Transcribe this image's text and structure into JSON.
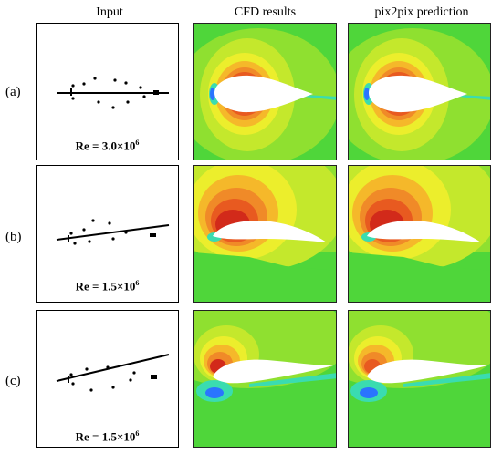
{
  "headers": {
    "input": "Input",
    "cfd": "CFD results",
    "pred": "pix2pix prediction"
  },
  "rows": [
    {
      "label": "(a)",
      "re_prefix": "Re = 3.0×10",
      "re_exp": "6"
    },
    {
      "label": "(b)",
      "re_prefix": "Re = 1.5×10",
      "re_exp": "6"
    },
    {
      "label": "(c)",
      "re_prefix": "Re = 1.5×10",
      "re_exp": "6"
    }
  ],
  "colors": {
    "background": "#4fd63a",
    "light_green": "#8fe030",
    "yellow_green": "#c4e82c",
    "yellow": "#ecee2c",
    "orange_yellow": "#f5b82a",
    "orange": "#f08a28",
    "red_orange": "#e85a20",
    "red": "#d22a1a",
    "cyan": "#3adcb0",
    "blue": "#2a74ff",
    "airfoil": "#ffffff"
  }
}
